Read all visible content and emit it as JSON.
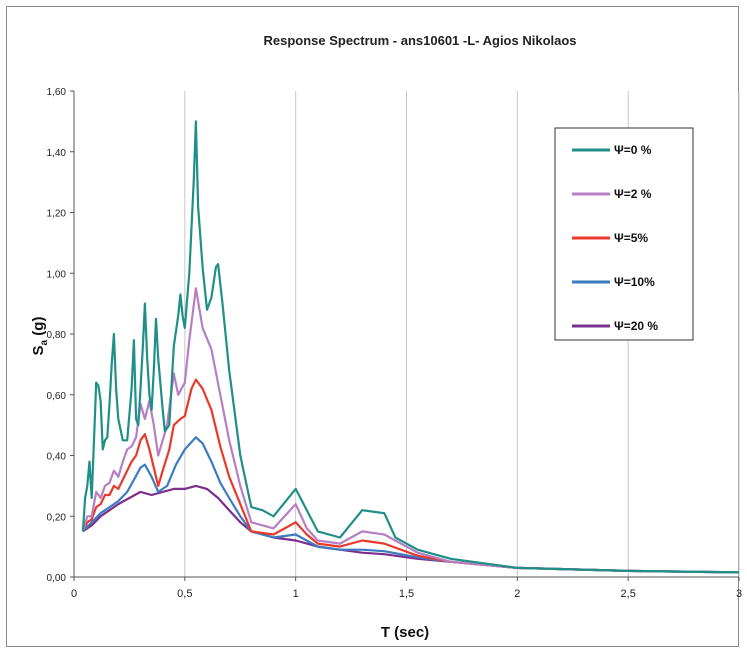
{
  "chart_data": {
    "type": "line",
    "title": "Response Spectrum - ans10601 -L- Agios Nikolaos",
    "xlabel": "T (sec)",
    "ylabel_main": "S",
    "ylabel_sub": "a",
    "ylabel_unit": " (g)",
    "xlim": [
      0,
      3
    ],
    "ylim": [
      0,
      1.6
    ],
    "x_ticks": [
      0,
      0.5,
      1,
      1.5,
      2,
      2.5,
      3
    ],
    "x_tick_labels": [
      "0",
      "0,5",
      "1",
      "1,5",
      "2",
      "2,5",
      "3"
    ],
    "y_ticks": [
      0,
      0.2,
      0.4,
      0.6,
      0.8,
      1.0,
      1.2,
      1.4,
      1.6
    ],
    "y_tick_labels": [
      "0,00",
      "0,20",
      "0,40",
      "0,60",
      "0,80",
      "1,00",
      "1,20",
      "1,40",
      "1,60"
    ],
    "grid": "vertical",
    "legend_position": "top-right",
    "series": [
      {
        "name": "Ψ=0 %",
        "color": "#1f8f87",
        "points": [
          [
            0.04,
            0.15
          ],
          [
            0.05,
            0.26
          ],
          [
            0.06,
            0.3
          ],
          [
            0.07,
            0.38
          ],
          [
            0.08,
            0.26
          ],
          [
            0.09,
            0.45
          ],
          [
            0.1,
            0.64
          ],
          [
            0.11,
            0.63
          ],
          [
            0.12,
            0.58
          ],
          [
            0.13,
            0.42
          ],
          [
            0.14,
            0.45
          ],
          [
            0.15,
            0.46
          ],
          [
            0.16,
            0.57
          ],
          [
            0.17,
            0.7
          ],
          [
            0.18,
            0.8
          ],
          [
            0.19,
            0.62
          ],
          [
            0.2,
            0.52
          ],
          [
            0.22,
            0.45
          ],
          [
            0.24,
            0.45
          ],
          [
            0.26,
            0.62
          ],
          [
            0.27,
            0.78
          ],
          [
            0.28,
            0.52
          ],
          [
            0.29,
            0.5
          ],
          [
            0.3,
            0.62
          ],
          [
            0.31,
            0.75
          ],
          [
            0.32,
            0.9
          ],
          [
            0.33,
            0.72
          ],
          [
            0.34,
            0.6
          ],
          [
            0.35,
            0.55
          ],
          [
            0.36,
            0.68
          ],
          [
            0.37,
            0.85
          ],
          [
            0.38,
            0.72
          ],
          [
            0.4,
            0.55
          ],
          [
            0.41,
            0.48
          ],
          [
            0.43,
            0.5
          ],
          [
            0.45,
            0.76
          ],
          [
            0.47,
            0.86
          ],
          [
            0.48,
            0.93
          ],
          [
            0.49,
            0.86
          ],
          [
            0.5,
            0.82
          ],
          [
            0.52,
            1.0
          ],
          [
            0.54,
            1.3
          ],
          [
            0.55,
            1.5
          ],
          [
            0.56,
            1.22
          ],
          [
            0.58,
            1.02
          ],
          [
            0.6,
            0.88
          ],
          [
            0.62,
            0.92
          ],
          [
            0.64,
            1.02
          ],
          [
            0.65,
            1.03
          ],
          [
            0.67,
            0.9
          ],
          [
            0.7,
            0.68
          ],
          [
            0.75,
            0.4
          ],
          [
            0.8,
            0.23
          ],
          [
            0.85,
            0.22
          ],
          [
            0.9,
            0.2
          ],
          [
            1.0,
            0.29
          ],
          [
            1.05,
            0.22
          ],
          [
            1.1,
            0.15
          ],
          [
            1.2,
            0.13
          ],
          [
            1.3,
            0.22
          ],
          [
            1.4,
            0.21
          ],
          [
            1.45,
            0.13
          ],
          [
            1.55,
            0.09
          ],
          [
            1.7,
            0.06
          ],
          [
            2.0,
            0.03
          ],
          [
            2.5,
            0.02
          ],
          [
            3.0,
            0.015
          ]
        ]
      },
      {
        "name": "Ψ=2 %",
        "color": "#b77ec4",
        "points": [
          [
            0.04,
            0.15
          ],
          [
            0.06,
            0.2
          ],
          [
            0.08,
            0.2
          ],
          [
            0.1,
            0.28
          ],
          [
            0.12,
            0.26
          ],
          [
            0.14,
            0.3
          ],
          [
            0.16,
            0.31
          ],
          [
            0.18,
            0.35
          ],
          [
            0.2,
            0.33
          ],
          [
            0.22,
            0.38
          ],
          [
            0.24,
            0.42
          ],
          [
            0.26,
            0.43
          ],
          [
            0.28,
            0.46
          ],
          [
            0.3,
            0.57
          ],
          [
            0.32,
            0.52
          ],
          [
            0.34,
            0.58
          ],
          [
            0.36,
            0.5
          ],
          [
            0.38,
            0.4
          ],
          [
            0.4,
            0.45
          ],
          [
            0.42,
            0.5
          ],
          [
            0.45,
            0.67
          ],
          [
            0.47,
            0.6
          ],
          [
            0.5,
            0.64
          ],
          [
            0.52,
            0.78
          ],
          [
            0.55,
            0.95
          ],
          [
            0.58,
            0.82
          ],
          [
            0.62,
            0.75
          ],
          [
            0.66,
            0.6
          ],
          [
            0.7,
            0.45
          ],
          [
            0.75,
            0.3
          ],
          [
            0.8,
            0.18
          ],
          [
            0.9,
            0.16
          ],
          [
            1.0,
            0.24
          ],
          [
            1.05,
            0.16
          ],
          [
            1.1,
            0.12
          ],
          [
            1.2,
            0.11
          ],
          [
            1.3,
            0.15
          ],
          [
            1.4,
            0.14
          ],
          [
            1.55,
            0.08
          ],
          [
            1.7,
            0.05
          ],
          [
            2.0,
            0.03
          ],
          [
            2.5,
            0.02
          ],
          [
            3.0,
            0.015
          ]
        ]
      },
      {
        "name": "Ψ=5%",
        "color": "#e8392b",
        "points": [
          [
            0.04,
            0.15
          ],
          [
            0.06,
            0.18
          ],
          [
            0.08,
            0.19
          ],
          [
            0.1,
            0.23
          ],
          [
            0.12,
            0.24
          ],
          [
            0.14,
            0.27
          ],
          [
            0.16,
            0.27
          ],
          [
            0.18,
            0.3
          ],
          [
            0.2,
            0.29
          ],
          [
            0.22,
            0.32
          ],
          [
            0.24,
            0.35
          ],
          [
            0.26,
            0.38
          ],
          [
            0.28,
            0.4
          ],
          [
            0.3,
            0.45
          ],
          [
            0.32,
            0.47
          ],
          [
            0.34,
            0.42
          ],
          [
            0.36,
            0.36
          ],
          [
            0.38,
            0.3
          ],
          [
            0.4,
            0.35
          ],
          [
            0.43,
            0.42
          ],
          [
            0.45,
            0.5
          ],
          [
            0.48,
            0.52
          ],
          [
            0.5,
            0.53
          ],
          [
            0.53,
            0.62
          ],
          [
            0.55,
            0.65
          ],
          [
            0.58,
            0.62
          ],
          [
            0.62,
            0.55
          ],
          [
            0.66,
            0.43
          ],
          [
            0.7,
            0.33
          ],
          [
            0.75,
            0.24
          ],
          [
            0.8,
            0.15
          ],
          [
            0.9,
            0.14
          ],
          [
            1.0,
            0.18
          ],
          [
            1.05,
            0.14
          ],
          [
            1.1,
            0.11
          ],
          [
            1.2,
            0.1
          ],
          [
            1.3,
            0.12
          ],
          [
            1.4,
            0.11
          ],
          [
            1.55,
            0.07
          ],
          [
            1.7,
            0.05
          ],
          [
            2.0,
            0.03
          ],
          [
            2.5,
            0.02
          ],
          [
            3.0,
            0.015
          ]
        ]
      },
      {
        "name": "Ψ=10%",
        "color": "#3b7bc0",
        "points": [
          [
            0.04,
            0.15
          ],
          [
            0.08,
            0.18
          ],
          [
            0.12,
            0.21
          ],
          [
            0.16,
            0.23
          ],
          [
            0.2,
            0.25
          ],
          [
            0.24,
            0.28
          ],
          [
            0.27,
            0.32
          ],
          [
            0.3,
            0.36
          ],
          [
            0.32,
            0.37
          ],
          [
            0.35,
            0.33
          ],
          [
            0.38,
            0.28
          ],
          [
            0.42,
            0.3
          ],
          [
            0.46,
            0.37
          ],
          [
            0.5,
            0.42
          ],
          [
            0.55,
            0.46
          ],
          [
            0.58,
            0.44
          ],
          [
            0.62,
            0.38
          ],
          [
            0.66,
            0.31
          ],
          [
            0.7,
            0.26
          ],
          [
            0.75,
            0.2
          ],
          [
            0.8,
            0.15
          ],
          [
            0.9,
            0.13
          ],
          [
            1.0,
            0.14
          ],
          [
            1.1,
            0.1
          ],
          [
            1.2,
            0.09
          ],
          [
            1.3,
            0.09
          ],
          [
            1.4,
            0.085
          ],
          [
            1.55,
            0.065
          ],
          [
            1.7,
            0.05
          ],
          [
            2.0,
            0.03
          ],
          [
            2.5,
            0.02
          ],
          [
            3.0,
            0.015
          ]
        ]
      },
      {
        "name": "Ψ=20 %",
        "color": "#7b2f8c",
        "points": [
          [
            0.04,
            0.15
          ],
          [
            0.08,
            0.17
          ],
          [
            0.12,
            0.2
          ],
          [
            0.16,
            0.22
          ],
          [
            0.2,
            0.24
          ],
          [
            0.25,
            0.26
          ],
          [
            0.3,
            0.28
          ],
          [
            0.35,
            0.27
          ],
          [
            0.4,
            0.28
          ],
          [
            0.45,
            0.29
          ],
          [
            0.5,
            0.29
          ],
          [
            0.55,
            0.3
          ],
          [
            0.6,
            0.29
          ],
          [
            0.65,
            0.26
          ],
          [
            0.7,
            0.22
          ],
          [
            0.75,
            0.18
          ],
          [
            0.8,
            0.15
          ],
          [
            0.9,
            0.13
          ],
          [
            1.0,
            0.12
          ],
          [
            1.1,
            0.1
          ],
          [
            1.2,
            0.09
          ],
          [
            1.3,
            0.08
          ],
          [
            1.4,
            0.075
          ],
          [
            1.55,
            0.06
          ],
          [
            1.7,
            0.05
          ],
          [
            2.0,
            0.03
          ],
          [
            2.5,
            0.02
          ],
          [
            3.0,
            0.015
          ]
        ]
      }
    ]
  }
}
